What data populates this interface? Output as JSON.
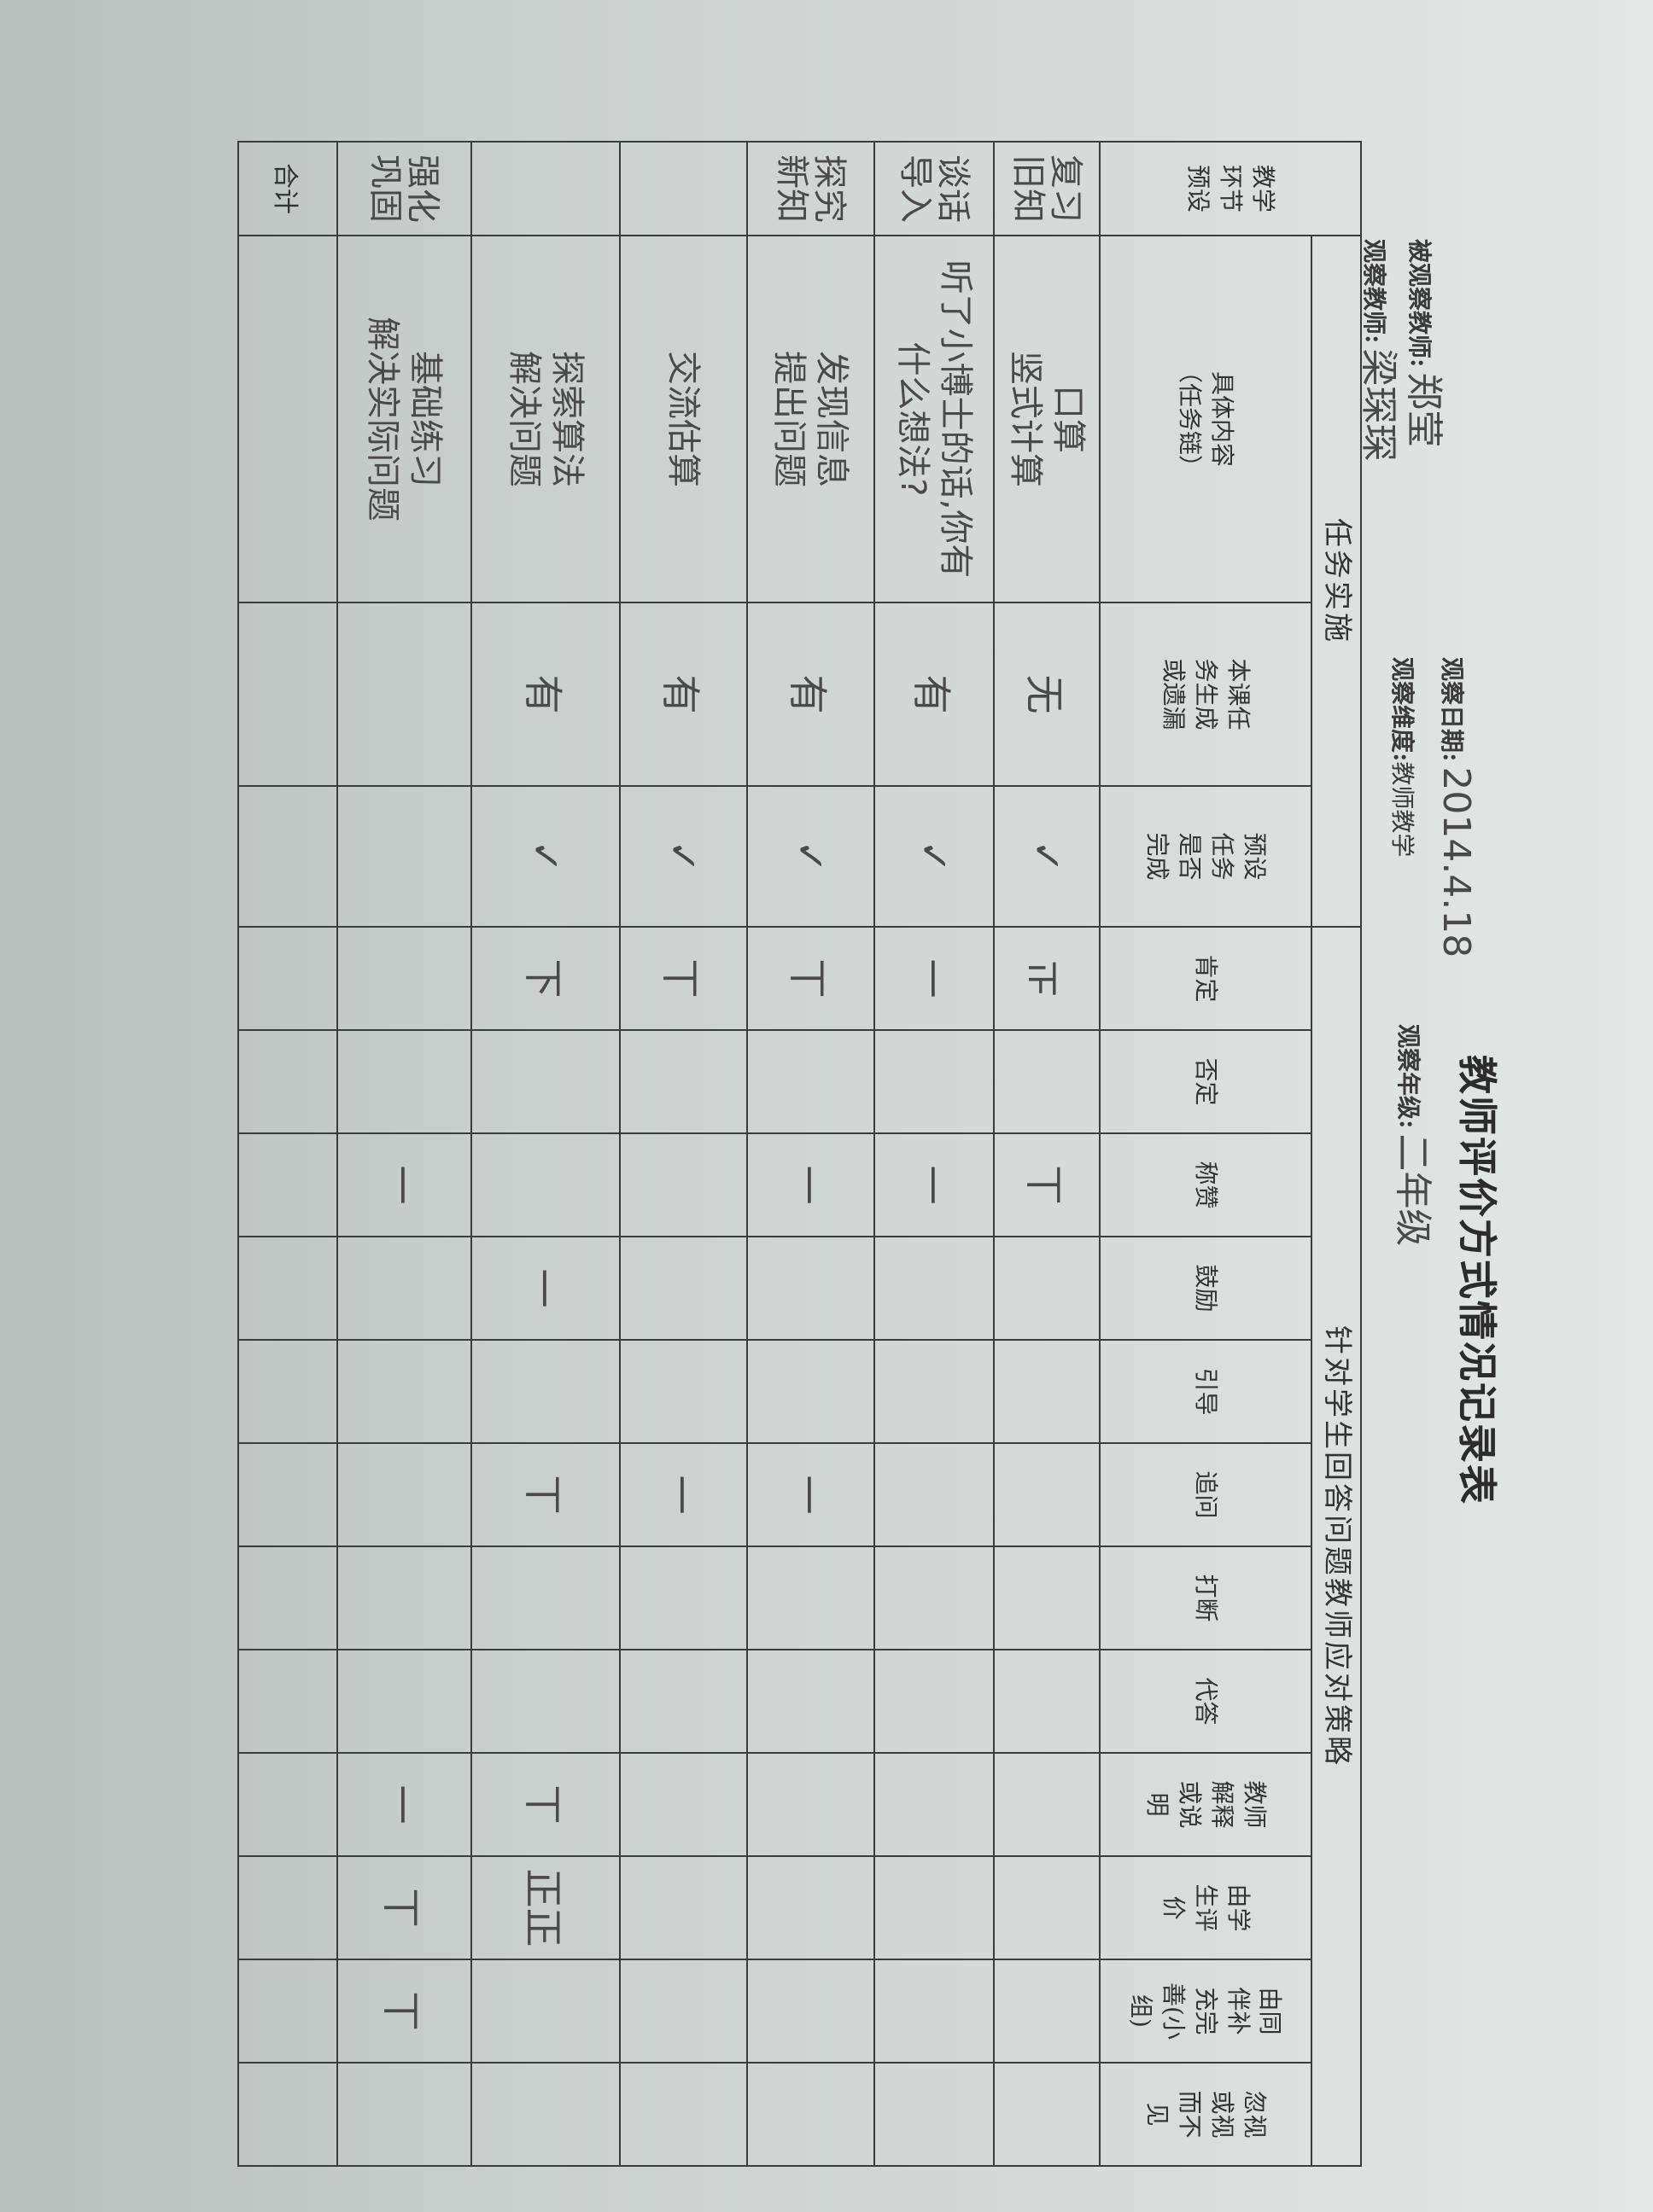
{
  "title": "教师评价方式情况记录表",
  "info": {
    "observed_teacher_label": "被观察教师:",
    "observed_teacher": "郑莹",
    "observer_label": "观察教师:",
    "observer": "梁琛琛",
    "date_label": "观察日期:",
    "date": "2014.4.18",
    "grade_label": "观察年级:",
    "grade": "二年级",
    "dimension_label": "观察维度:",
    "dimension": "教师教学"
  },
  "table": {
    "stage_header": "教学\n环节\n预设",
    "group_task": "任务实施",
    "group_strategy": "针对学生回答问题教师应对策略",
    "columns": [
      "具体内容\n（任务链）",
      "本课任\n务生成\n或遗漏",
      "预设\n任务\n是否\n完成",
      "肯定",
      "否定",
      "称赞",
      "鼓励",
      "引导",
      "追问",
      "打断",
      "代答",
      "教师\n解释\n或说\n明",
      "由学\n生评\n价",
      "由同\n伴补\n充完\n善(小\n组)",
      "忽视\n或视\n而不\n见"
    ],
    "rows": [
      {
        "stage": "复习\n旧知",
        "content": "口算\n竖式计算",
        "marks": [
          "无",
          "✓",
          "正",
          "",
          "丅",
          "",
          "",
          "",
          "",
          "",
          "",
          "",
          "",
          ""
        ]
      },
      {
        "stage": "谈话\n导入",
        "content": "听了小博士的话,你有\n什么想法?",
        "marks": [
          "有",
          "✓",
          "一",
          "",
          "一",
          "",
          "",
          "",
          "",
          "",
          "",
          "",
          "",
          ""
        ]
      },
      {
        "stage": "探究\n新知",
        "content": "发现信息\n提出问题",
        "marks": [
          "有",
          "✓",
          "丅",
          "",
          "一",
          "",
          "",
          "一",
          "",
          "",
          "",
          "",
          "",
          ""
        ]
      },
      {
        "stage": "",
        "content": "交流估算",
        "marks": [
          "有",
          "✓",
          "丅",
          "",
          "",
          "",
          "",
          "一",
          "",
          "",
          "",
          "",
          "",
          ""
        ]
      },
      {
        "stage": "",
        "content": "探索算法\n解决问题",
        "marks": [
          "有",
          "✓",
          "下",
          "",
          "",
          "一",
          "",
          "丅",
          "",
          "",
          "丅",
          "正正",
          "",
          ""
        ]
      },
      {
        "stage": "强化\n巩固",
        "content": "基础练习\n解决实际问题",
        "marks": [
          "",
          "",
          "",
          "",
          "一",
          "",
          "",
          "",
          "",
          "",
          "一",
          "丅",
          "丅",
          ""
        ]
      }
    ],
    "total_label": "合计"
  },
  "colors": {
    "paper": "#d6dbd9",
    "ink": "#333333",
    "pencil": "#4a4a4a",
    "clip": "#eee55a"
  }
}
